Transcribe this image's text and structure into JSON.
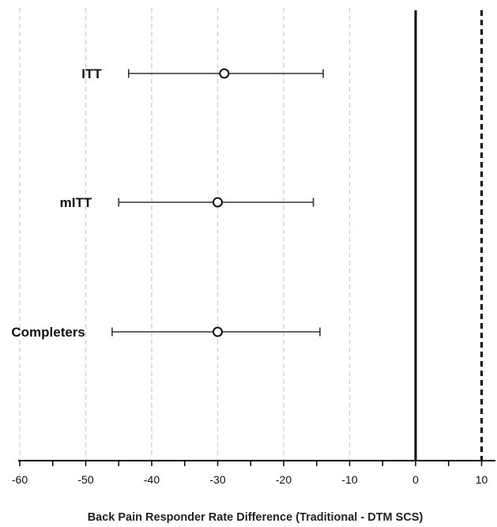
{
  "chart_data": {
    "type": "forest",
    "xlabel": "Back Pain Responder Rate Difference (Traditional - DTM SCS)",
    "xlim": [
      -60,
      12
    ],
    "xticks": [
      -60,
      -50,
      -40,
      -30,
      -20,
      -10,
      0,
      10
    ],
    "grid": "vertical dashed",
    "reference_lines": [
      {
        "x": 0,
        "style": "solid"
      },
      {
        "x": 10,
        "style": "dashed"
      }
    ],
    "rows": [
      {
        "label": "ITT",
        "estimate": -29,
        "lower": -43.5,
        "upper": -14
      },
      {
        "label": "mITT",
        "estimate": -30,
        "lower": -45,
        "upper": -15.5
      },
      {
        "label": "Completers",
        "estimate": -30,
        "lower": -46,
        "upper": -14.5
      }
    ]
  }
}
